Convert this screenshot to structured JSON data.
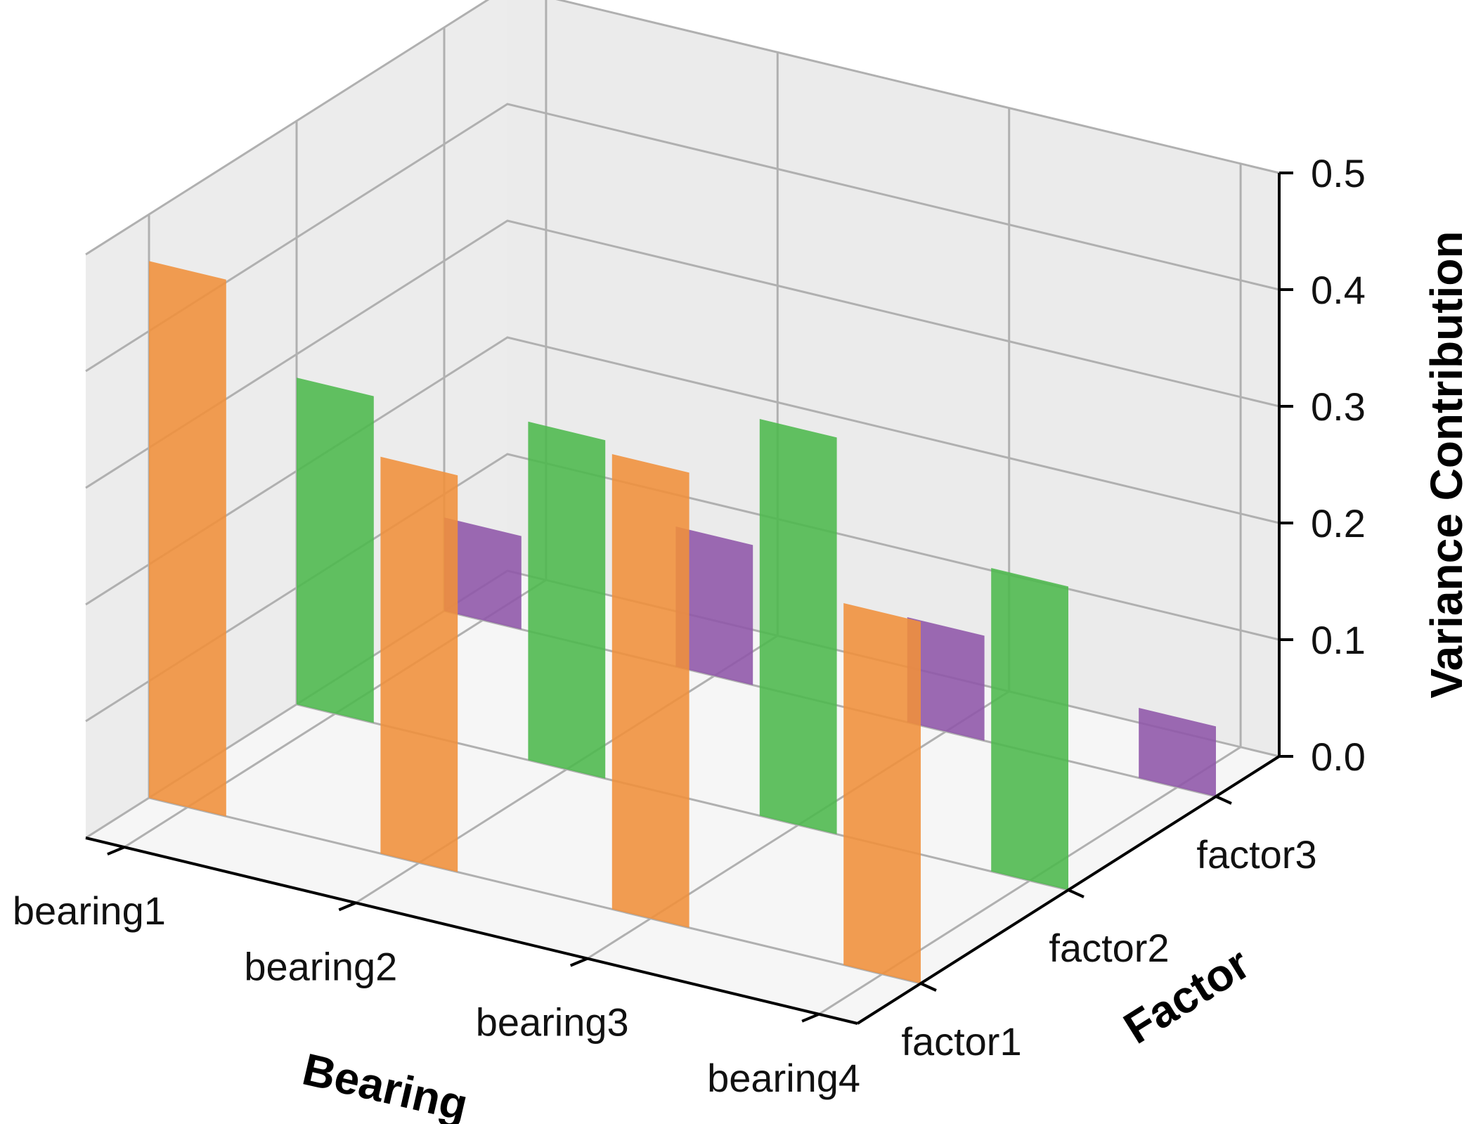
{
  "chart_data": {
    "type": "bar3d",
    "title": "",
    "xlabel": "Bearing",
    "ylabel": "Factor",
    "zlabel": "Variance Contribution",
    "x_categories": [
      "bearing1",
      "bearing2",
      "bearing3",
      "bearing4"
    ],
    "y_categories": [
      "factor1",
      "factor2",
      "factor3"
    ],
    "zlim": [
      0,
      0.5
    ],
    "z_ticks": [
      "0.0",
      "0.1",
      "0.2",
      "0.3",
      "0.4",
      "0.5"
    ],
    "series": [
      {
        "name": "factor1",
        "color": "#f0903a",
        "values": [
          0.46,
          0.34,
          0.39,
          0.31
        ]
      },
      {
        "name": "factor2",
        "color": "#4cb84c",
        "values": [
          0.28,
          0.29,
          0.34,
          0.26
        ]
      },
      {
        "name": "factor3",
        "color": "#8e55a8",
        "values": [
          0.08,
          0.12,
          0.09,
          0.06
        ]
      }
    ],
    "grid": true
  }
}
